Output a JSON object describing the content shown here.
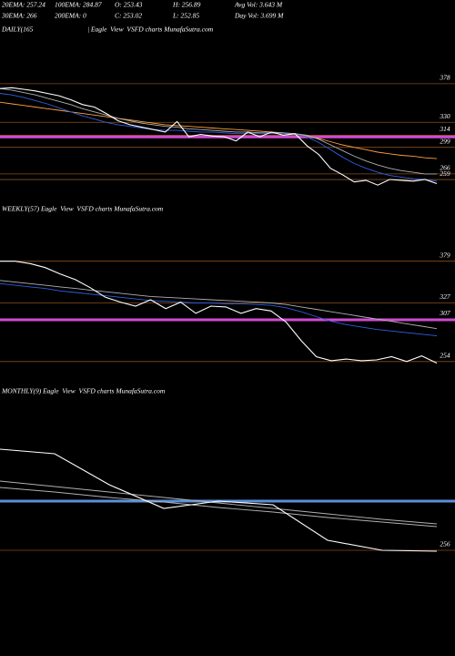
{
  "chart_data": [
    {
      "type": "line",
      "annotations": [
        "20EMA: 257.24",
        "100EMA: 284.87",
        "O: 253.43",
        "H: 256.89",
        "Avg Vol: 3.643 M",
        "30EMA: 266",
        "200EMA: 0",
        "C: 253.02",
        "L: 252.85",
        "Day Vol: 3.699 M"
      ],
      "title": "DAILY(165",
      "subtitle": "| Eagle  View  VSFD charts MunafaSutra.com",
      "ylim": [
        250,
        431
      ],
      "yticks": [
        378,
        330,
        314,
        299,
        266,
        259
      ],
      "level_color": "#8a4b1c",
      "highlight": {
        "value": 312,
        "color": "#d24bd2"
      },
      "series": [
        {
          "color": "#ffa040",
          "values": [
            355,
            353,
            351,
            349,
            347,
            345,
            343,
            341,
            339,
            337,
            335,
            333,
            331,
            329,
            327,
            326,
            325,
            324,
            323,
            322,
            321,
            320,
            319,
            318,
            317,
            315,
            313,
            310,
            306,
            302,
            299,
            296,
            293,
            291,
            289,
            288,
            286,
            285
          ]
        },
        {
          "color": "#b0b0b0",
          "values": [
            372,
            370,
            367,
            364,
            360,
            356,
            352,
            347,
            343,
            339,
            335,
            332,
            329,
            327,
            325,
            324,
            322,
            321,
            320,
            319,
            318,
            318,
            317,
            317,
            317,
            316,
            314,
            309,
            302,
            295,
            288,
            282,
            277,
            273,
            270,
            268,
            266,
            266
          ]
        },
        {
          "color": "#2f5fe0",
          "values": [
            366,
            364,
            361,
            357,
            353,
            348,
            343,
            338,
            334,
            330,
            327,
            325,
            323,
            321,
            320,
            320,
            319,
            318,
            318,
            317,
            316,
            316,
            316,
            316,
            316,
            315,
            312,
            305,
            296,
            287,
            279,
            273,
            268,
            264,
            262,
            260,
            259,
            257
          ]
        },
        {
          "color": "#ffffff",
          "values": [
            372,
            373,
            371,
            369,
            366,
            363,
            358,
            352,
            349,
            341,
            332,
            327,
            324,
            321,
            318,
            331,
            312,
            315,
            313,
            312,
            307,
            318,
            312,
            318,
            314,
            316,
            301,
            290,
            273,
            265,
            256,
            258,
            252,
            259,
            258,
            257,
            259,
            254
          ]
        }
      ]
    },
    {
      "type": "line",
      "title": "WEEKLY(57) Eagle  View  VSFD charts MunafaSutra.com",
      "ylim": [
        239,
        432
      ],
      "yticks": [
        379,
        327,
        307,
        254
      ],
      "level_color": "#8a4b1c",
      "highlight": {
        "value": 306,
        "color": "#d24bd2"
      },
      "series": [
        {
          "color": "#b0b0b0",
          "values": [
            355,
            353,
            351,
            349,
            347,
            345,
            343,
            341,
            339,
            337,
            335,
            334,
            333,
            332,
            331,
            330,
            329,
            328,
            327,
            325,
            322,
            319,
            316,
            313,
            310,
            307,
            304,
            301,
            298,
            295
          ]
        },
        {
          "color": "#2f5fe0",
          "values": [
            351,
            349,
            347,
            345,
            342,
            340,
            338,
            336,
            334,
            332,
            330,
            329,
            328,
            327,
            327,
            326,
            326,
            325,
            324,
            321,
            316,
            310,
            304,
            300,
            297,
            294,
            292,
            290,
            288,
            286
          ]
        },
        {
          "color": "#ffffff",
          "values": [
            379,
            379,
            376,
            371,
            363,
            356,
            346,
            334,
            328,
            323,
            331,
            320,
            328,
            314,
            323,
            322,
            314,
            320,
            317,
            303,
            280,
            260,
            255,
            257,
            255,
            256,
            260,
            254,
            261,
            252
          ]
        }
      ]
    },
    {
      "type": "line",
      "title": "MONTHLY(9) Eagle  View  VSFD charts MunafaSutra.com",
      "ylim": [
        240,
        420
      ],
      "yticks": [
        256
      ],
      "level_color": "#8a4b1c",
      "highlight": {
        "value": 310,
        "color": "#5b8fd9"
      },
      "series": [
        {
          "color": "#b0b0b0",
          "values": [
            332,
            326,
            320,
            314,
            308,
            302,
            296,
            290,
            285
          ]
        },
        {
          "color": "#b0b0b0",
          "values": [
            325,
            320,
            314,
            309,
            303,
            298,
            292,
            287,
            282
          ]
        },
        {
          "color": "#ffffff",
          "values": [
            367,
            362,
            328,
            302,
            310,
            306,
            267,
            256,
            255
          ]
        }
      ]
    }
  ]
}
